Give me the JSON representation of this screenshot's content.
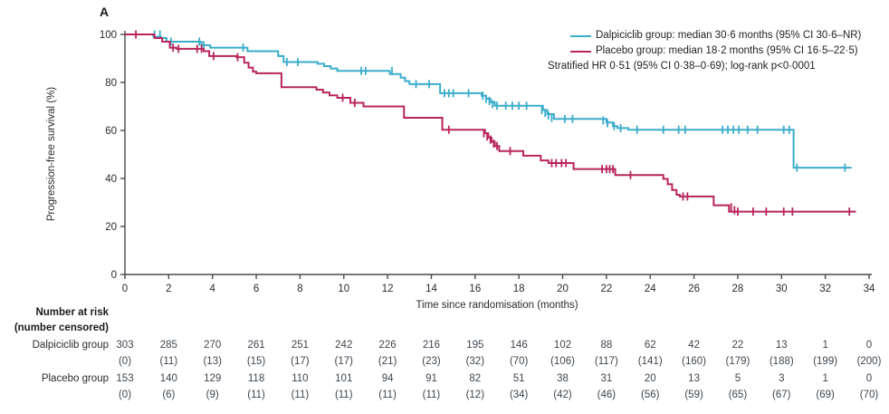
{
  "figure": {
    "panel_label": "A"
  },
  "legend": {
    "entries": [
      {
        "label": "Dalpiciclib group: median 30·6 months (95% CI 30·6–NR)",
        "color": "#3BADCB"
      },
      {
        "label": "Placebo group: median 18·2 months (95% CI 16·5–22·5)",
        "color": "#B8255C"
      }
    ],
    "note": "Stratified HR 0·51 (95% CI 0·38–0·69); log-rank p<0·0001"
  },
  "chart_data": {
    "type": "line",
    "subtype": "kaplan-meier-step",
    "title": "",
    "xlabel": "Time since randomisation (months)",
    "ylabel": "Progression-free survival (%)",
    "xlim": [
      0,
      34
    ],
    "ylim": [
      0,
      100
    ],
    "x_ticks": [
      0,
      2,
      4,
      6,
      8,
      10,
      12,
      14,
      16,
      18,
      20,
      22,
      24,
      26,
      28,
      30,
      32,
      34
    ],
    "y_ticks": [
      0,
      20,
      40,
      60,
      80,
      100
    ],
    "grid": false,
    "legend_position": "top-right",
    "series": [
      {
        "name": "Dalpiciclib group",
        "color": "#3BADCB",
        "median_months": "30·6",
        "ci_95": "30·6–NR",
        "steps": [
          [
            0,
            100
          ],
          [
            1.3,
            100
          ],
          [
            1.3,
            99
          ],
          [
            1.65,
            99
          ],
          [
            1.65,
            98.5
          ],
          [
            1.9,
            98.5
          ],
          [
            1.9,
            97
          ],
          [
            3.5,
            97
          ],
          [
            3.5,
            95.5
          ],
          [
            3.9,
            95.5
          ],
          [
            3.9,
            94.5
          ],
          [
            5.6,
            94.5
          ],
          [
            5.6,
            93
          ],
          [
            7.0,
            93
          ],
          [
            7.0,
            91
          ],
          [
            7.25,
            91
          ],
          [
            7.25,
            88.5
          ],
          [
            8.6,
            88.5
          ],
          [
            8.8,
            87.8
          ],
          [
            9.1,
            86.8
          ],
          [
            9.4,
            85.8
          ],
          [
            9.7,
            84.8
          ],
          [
            12.1,
            84.8
          ],
          [
            12.1,
            83.5
          ],
          [
            12.6,
            83.5
          ],
          [
            12.6,
            82
          ],
          [
            12.8,
            82
          ],
          [
            12.8,
            80.5
          ],
          [
            13.0,
            80.5
          ],
          [
            13.0,
            79.3
          ],
          [
            14.4,
            79.3
          ],
          [
            14.4,
            75.5
          ],
          [
            16.1,
            75.5
          ],
          [
            16.3,
            74.5
          ],
          [
            16.5,
            73.2
          ],
          [
            16.7,
            71.8
          ],
          [
            16.9,
            70.3
          ],
          [
            18.9,
            70.3
          ],
          [
            19.1,
            68.5
          ],
          [
            19.3,
            66.8
          ],
          [
            19.6,
            64.8
          ],
          [
            21.8,
            64.8
          ],
          [
            22.0,
            63.3
          ],
          [
            22.3,
            61.8
          ],
          [
            22.5,
            61
          ],
          [
            23.0,
            61
          ],
          [
            23.0,
            60.3
          ],
          [
            30.55,
            60.3
          ],
          [
            30.55,
            44.5
          ],
          [
            33.2,
            44.5
          ]
        ],
        "censors": [
          [
            1.35,
            100
          ],
          [
            1.6,
            100
          ],
          [
            2.1,
            97
          ],
          [
            3.4,
            97
          ],
          [
            3.6,
            95.5
          ],
          [
            5.4,
            94.5
          ],
          [
            7.4,
            88.5
          ],
          [
            7.9,
            88.5
          ],
          [
            10.8,
            84.8
          ],
          [
            11.0,
            84.8
          ],
          [
            12.2,
            84.8
          ],
          [
            13.3,
            79.3
          ],
          [
            13.9,
            79.3
          ],
          [
            14.6,
            75.5
          ],
          [
            14.8,
            75.5
          ],
          [
            15.0,
            75.5
          ],
          [
            15.7,
            75.5
          ],
          [
            16.35,
            74.5
          ],
          [
            16.5,
            73.2
          ],
          [
            16.65,
            72.3
          ],
          [
            16.8,
            71
          ],
          [
            17.0,
            70.3
          ],
          [
            17.4,
            70.3
          ],
          [
            17.7,
            70.3
          ],
          [
            18.0,
            70.3
          ],
          [
            18.35,
            70.3
          ],
          [
            19.05,
            68.5
          ],
          [
            19.2,
            67.3
          ],
          [
            19.35,
            66.2
          ],
          [
            19.5,
            65.2
          ],
          [
            20.1,
            64.8
          ],
          [
            20.45,
            64.8
          ],
          [
            21.85,
            64.2
          ],
          [
            22.05,
            63
          ],
          [
            22.35,
            61.8
          ],
          [
            22.65,
            61
          ],
          [
            23.4,
            60.3
          ],
          [
            24.6,
            60.3
          ],
          [
            25.3,
            60.3
          ],
          [
            25.6,
            60.3
          ],
          [
            27.3,
            60.3
          ],
          [
            27.55,
            60.3
          ],
          [
            27.8,
            60.3
          ],
          [
            28.05,
            60.3
          ],
          [
            28.45,
            60.3
          ],
          [
            28.9,
            60.3
          ],
          [
            30.1,
            60.3
          ],
          [
            30.35,
            60.3
          ],
          [
            30.7,
            44.5
          ],
          [
            32.9,
            44.5
          ]
        ]
      },
      {
        "name": "Placebo group",
        "color": "#B8255C",
        "median_months": "18·2",
        "ci_95": "16·5–22·5",
        "steps": [
          [
            0,
            100
          ],
          [
            1.35,
            100
          ],
          [
            1.35,
            98.5
          ],
          [
            1.7,
            98.5
          ],
          [
            1.7,
            97
          ],
          [
            2.05,
            97
          ],
          [
            2.05,
            94.5
          ],
          [
            2.35,
            94.5
          ],
          [
            2.35,
            94
          ],
          [
            3.6,
            94
          ],
          [
            3.6,
            93
          ],
          [
            3.85,
            93
          ],
          [
            3.85,
            91
          ],
          [
            5.1,
            91
          ],
          [
            5.1,
            90.5
          ],
          [
            5.45,
            90.5
          ],
          [
            5.45,
            88.2
          ],
          [
            5.65,
            88.2
          ],
          [
            5.65,
            86.2
          ],
          [
            5.85,
            86.2
          ],
          [
            5.85,
            84.5
          ],
          [
            6.0,
            84.5
          ],
          [
            6.0,
            83.8
          ],
          [
            7.15,
            83.8
          ],
          [
            7.15,
            78
          ],
          [
            8.5,
            78
          ],
          [
            8.75,
            77
          ],
          [
            9.05,
            75.8
          ],
          [
            9.35,
            74.6
          ],
          [
            9.7,
            73.6
          ],
          [
            10.3,
            73.6
          ],
          [
            10.3,
            71.5
          ],
          [
            10.9,
            71.5
          ],
          [
            10.9,
            70
          ],
          [
            12.75,
            70
          ],
          [
            12.75,
            65.3
          ],
          [
            14.5,
            65.3
          ],
          [
            14.5,
            60.3
          ],
          [
            16.3,
            60.3
          ],
          [
            16.45,
            58.8
          ],
          [
            16.6,
            57
          ],
          [
            16.75,
            55.3
          ],
          [
            16.9,
            53.5
          ],
          [
            17.1,
            53.5
          ],
          [
            17.1,
            51.4
          ],
          [
            18.2,
            51.4
          ],
          [
            18.2,
            49.5
          ],
          [
            19.0,
            49.5
          ],
          [
            19.0,
            47.5
          ],
          [
            19.35,
            47.5
          ],
          [
            19.35,
            46.4
          ],
          [
            20.5,
            46.4
          ],
          [
            20.5,
            43.9
          ],
          [
            22.4,
            43.9
          ],
          [
            22.4,
            41.4
          ],
          [
            24.5,
            41.4
          ],
          [
            24.6,
            39.8
          ],
          [
            24.8,
            37.6
          ],
          [
            25.0,
            35.2
          ],
          [
            25.2,
            33.2
          ],
          [
            25.35,
            32.5
          ],
          [
            26.9,
            32.5
          ],
          [
            26.9,
            28.8
          ],
          [
            27.6,
            28.8
          ],
          [
            27.6,
            26.2
          ],
          [
            33.4,
            26.2
          ]
        ],
        "censors": [
          [
            0.5,
            100
          ],
          [
            2.2,
            94.5
          ],
          [
            2.45,
            94
          ],
          [
            3.3,
            94
          ],
          [
            3.5,
            94
          ],
          [
            4.05,
            91
          ],
          [
            5.15,
            90.5
          ],
          [
            9.95,
            73.6
          ],
          [
            10.5,
            71.5
          ],
          [
            14.8,
            60.3
          ],
          [
            16.4,
            58.8
          ],
          [
            16.55,
            57.5
          ],
          [
            16.7,
            56.2
          ],
          [
            16.85,
            54.5
          ],
          [
            17.0,
            53.5
          ],
          [
            17.6,
            51.4
          ],
          [
            19.5,
            46.4
          ],
          [
            19.7,
            46.4
          ],
          [
            19.95,
            46.4
          ],
          [
            20.15,
            46.4
          ],
          [
            21.8,
            43.9
          ],
          [
            22.0,
            43.9
          ],
          [
            22.15,
            43.9
          ],
          [
            22.3,
            43.9
          ],
          [
            23.1,
            41.4
          ],
          [
            25.5,
            32.5
          ],
          [
            25.7,
            32.5
          ],
          [
            27.7,
            28
          ],
          [
            27.85,
            26.8
          ],
          [
            28.0,
            26.2
          ],
          [
            28.7,
            26.2
          ],
          [
            29.3,
            26.2
          ],
          [
            30.1,
            26.2
          ],
          [
            30.5,
            26.2
          ],
          [
            33.1,
            26.2
          ]
        ]
      }
    ]
  },
  "risk_table": {
    "header_line1": "Number at risk",
    "header_line2": "(number censored)",
    "time_points": [
      0,
      2,
      4,
      6,
      8,
      10,
      12,
      14,
      16,
      18,
      20,
      22,
      24,
      26,
      28,
      30,
      32,
      34
    ],
    "rows": [
      {
        "label": "Dalpiciclib group",
        "at_risk": [
          303,
          285,
          270,
          261,
          251,
          242,
          226,
          216,
          195,
          146,
          102,
          88,
          62,
          42,
          22,
          13,
          1,
          0
        ],
        "censored": [
          0,
          11,
          13,
          15,
          17,
          17,
          21,
          23,
          32,
          70,
          106,
          117,
          141,
          160,
          179,
          188,
          199,
          200
        ]
      },
      {
        "label": "Placebo group",
        "at_risk": [
          153,
          140,
          129,
          118,
          110,
          101,
          94,
          91,
          82,
          51,
          38,
          31,
          20,
          13,
          5,
          3,
          1,
          0
        ],
        "censored": [
          0,
          6,
          9,
          11,
          11,
          11,
          11,
          11,
          12,
          34,
          42,
          46,
          56,
          59,
          65,
          67,
          69,
          70
        ]
      }
    ]
  }
}
